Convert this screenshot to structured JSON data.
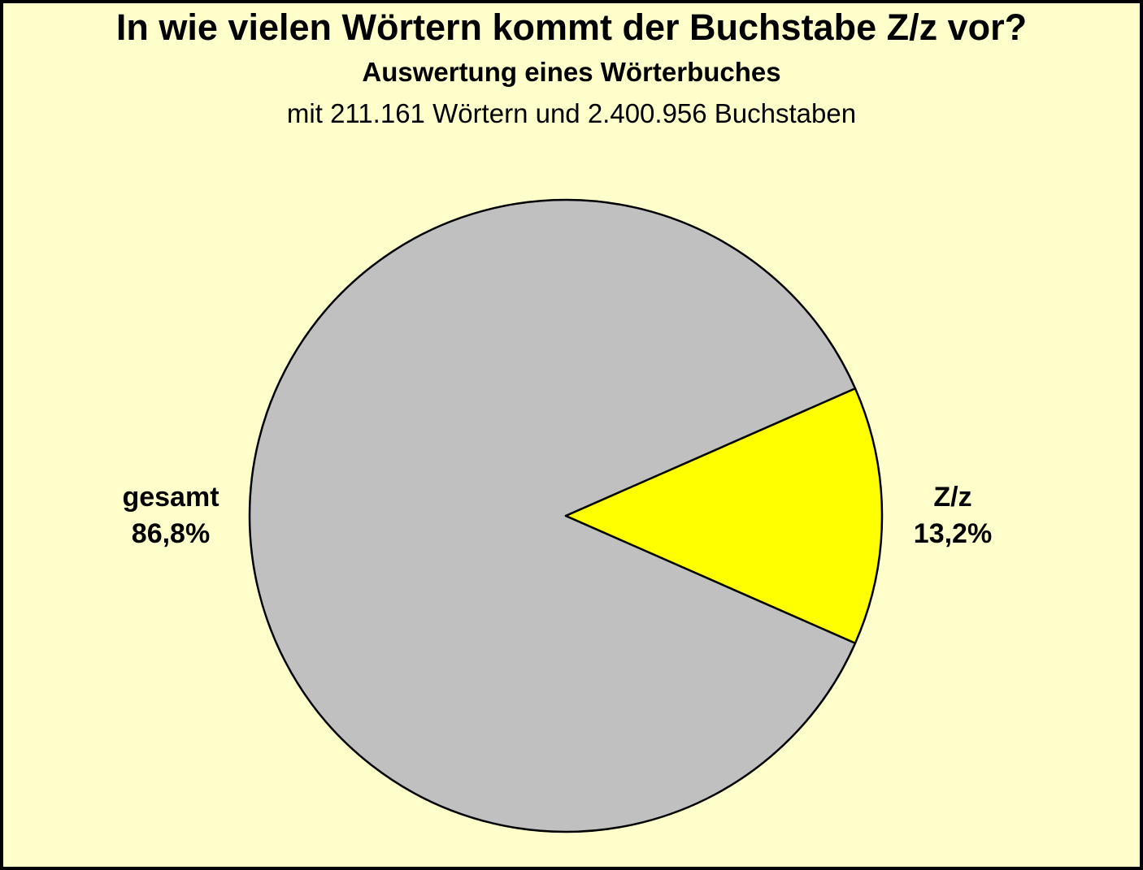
{
  "page": {
    "background": "#FFFFCC",
    "frame_color": "#000000"
  },
  "chart_data": {
    "type": "pie",
    "title": "In wie vielen Wörtern kommt der Buchstabe Z/z vor?",
    "subtitle": "Auswertung eines Wörterbuches",
    "subtitle2": "mit 211.161 Wörtern und 2.400.956 Buchstaben",
    "slices": [
      {
        "label": "gesamt",
        "value": 86.8,
        "percent_label": "86,8%",
        "color": "#C0C0C0"
      },
      {
        "label": "Z/z",
        "value": 13.2,
        "percent_label": "13,2%",
        "color": "#FFFF00"
      }
    ],
    "start_angle_deg": 23.76,
    "outline_color": "#000000",
    "legend": "none",
    "labels_position": "outside-left-and-right"
  }
}
